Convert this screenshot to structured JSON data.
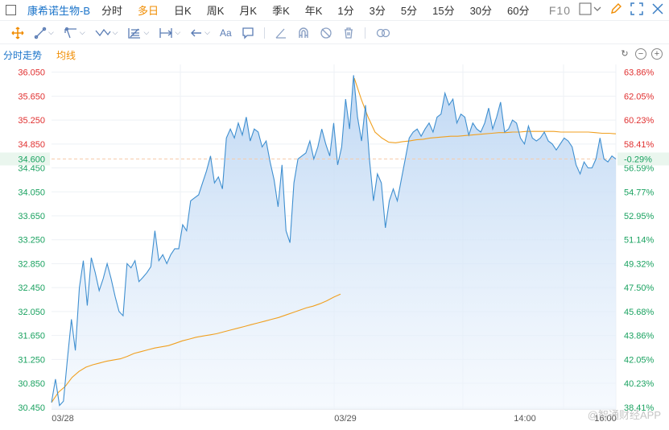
{
  "header": {
    "title": "康希诺生物-B",
    "tabs": [
      {
        "label": "分时",
        "active": false
      },
      {
        "label": "多日",
        "active": true
      },
      {
        "label": "日K",
        "active": false
      },
      {
        "label": "周K",
        "active": false
      },
      {
        "label": "月K",
        "active": false
      },
      {
        "label": "季K",
        "active": false
      },
      {
        "label": "年K",
        "active": false
      },
      {
        "label": "1分",
        "active": false
      },
      {
        "label": "3分",
        "active": false
      },
      {
        "label": "5分",
        "active": false
      },
      {
        "label": "15分",
        "active": false
      },
      {
        "label": "30分",
        "active": false
      },
      {
        "label": "60分",
        "active": false
      }
    ],
    "f10_label": "F10"
  },
  "toolbar": {
    "text_tool": "Aa"
  },
  "legend": {
    "price_label": "分时走势",
    "avg_label": "均线"
  },
  "colors": {
    "price_line": "#3f8fd0",
    "avg_line": "#f0a020",
    "up": "#e03030",
    "down": "#1aa260",
    "ref_line": "#f6c9a8"
  },
  "watermark": "@智通财经APP",
  "chart_data": {
    "type": "area",
    "x_ticks": [
      "03/28",
      "03/29",
      "14:00",
      "16:00"
    ],
    "y_ticks": [
      "36.050",
      "35.650",
      "35.250",
      "34.850",
      "34.450",
      "34.050",
      "33.650",
      "33.250",
      "32.850",
      "32.450",
      "32.050",
      "31.650",
      "31.250",
      "30.850",
      "30.450"
    ],
    "y_tick_values": [
      36.05,
      35.65,
      35.25,
      34.85,
      34.45,
      34.05,
      33.65,
      33.25,
      32.85,
      32.45,
      32.05,
      31.65,
      31.25,
      30.85,
      30.45
    ],
    "pct_ticks": [
      "63.86%",
      "62.05%",
      "60.23%",
      "58.41%",
      "56.59%",
      "54.77%",
      "52.95%",
      "51.14%",
      "49.32%",
      "47.50%",
      "45.68%",
      "43.86%",
      "42.05%",
      "40.23%",
      "38.41%"
    ],
    "ylim": [
      30.42,
      36.18
    ],
    "reference_price": 34.6,
    "current_label": "34.600",
    "current_pct": "-0.29%",
    "series": [
      {
        "name": "分时走势",
        "values": [
          30.53,
          30.92,
          30.48,
          30.55,
          31.25,
          31.92,
          31.4,
          32.45,
          32.9,
          32.15,
          32.95,
          32.7,
          32.4,
          32.6,
          32.85,
          32.6,
          32.3,
          32.05,
          31.98,
          32.85,
          32.78,
          32.9,
          32.55,
          32.62,
          32.7,
          32.8,
          33.4,
          32.9,
          33.0,
          32.85,
          33.0,
          33.1,
          33.1,
          33.5,
          33.4,
          33.9,
          33.95,
          34.0,
          34.2,
          34.4,
          34.65,
          34.2,
          34.3,
          34.1,
          34.95,
          35.1,
          34.95,
          35.2,
          35.0,
          35.3,
          34.9,
          35.1,
          35.05,
          34.8,
          34.9,
          34.55,
          34.25,
          33.8,
          34.5,
          33.4,
          33.2,
          34.2,
          34.6,
          34.65,
          34.7,
          34.9,
          34.6,
          34.8,
          35.1,
          34.85,
          34.65,
          35.2,
          34.5,
          34.8,
          35.6,
          35.1,
          36.0,
          35.3,
          34.9,
          35.5,
          34.6,
          33.9,
          34.35,
          34.2,
          33.45,
          33.9,
          34.1,
          33.9,
          34.25,
          34.6,
          34.95,
          35.05,
          35.1,
          34.98,
          35.1,
          35.2,
          35.05,
          35.3,
          35.35,
          35.7,
          35.5,
          35.6,
          35.2,
          35.35,
          35.3,
          35.0,
          35.2,
          35.1,
          35.05,
          35.2,
          35.45,
          35.1,
          35.3,
          35.55,
          35.05,
          35.1,
          35.25,
          35.2,
          34.95,
          34.85,
          35.15,
          34.95,
          34.9,
          34.95,
          35.05,
          34.9,
          34.85,
          34.75,
          34.85,
          34.95,
          34.9,
          34.8,
          34.5,
          34.35,
          34.55,
          34.45,
          34.45,
          34.6,
          34.95,
          34.6,
          34.55,
          34.65,
          34.6
        ]
      },
      {
        "name": "均线",
        "values": [
          30.53,
          30.7,
          30.8,
          30.95,
          31.05,
          31.12,
          31.16,
          31.19,
          31.22,
          31.24,
          31.26,
          31.3,
          31.35,
          31.38,
          31.41,
          31.44,
          31.46,
          31.48,
          31.52,
          31.56,
          31.59,
          31.62,
          31.64,
          31.66,
          31.68,
          31.71,
          31.74,
          31.77,
          31.8,
          31.83,
          31.86,
          31.89,
          31.92,
          31.95,
          31.99,
          32.03,
          32.07,
          32.11,
          32.14,
          32.18,
          32.23,
          32.29,
          32.34,
          null,
          35.95,
          35.6,
          35.3,
          35.05,
          34.95,
          34.88,
          34.87,
          34.89,
          34.9,
          34.92,
          34.93,
          34.95,
          34.96,
          34.97,
          34.98,
          34.98,
          34.99,
          35.0,
          35.01,
          35.02,
          35.03,
          35.04,
          35.04,
          35.05,
          35.05,
          35.06,
          35.06,
          35.06,
          35.06,
          35.06,
          35.05,
          35.05,
          35.05,
          35.05,
          35.05,
          35.04,
          35.03,
          35.03,
          35.02
        ]
      }
    ]
  }
}
